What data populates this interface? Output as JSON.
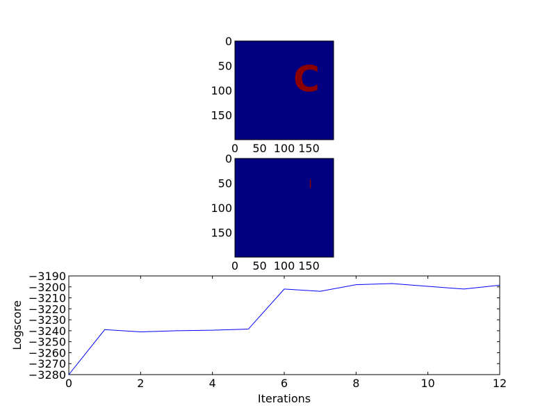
{
  "chart_data": [
    {
      "type": "heatmap",
      "panel": "top",
      "xlim": [
        0,
        200
      ],
      "ylim": [
        200,
        0
      ],
      "x_ticks": [
        "0",
        "50",
        "100",
        "150"
      ],
      "y_ticks": [
        "0",
        "50",
        "100",
        "150"
      ],
      "background_color": "#000080",
      "foreground_color": "#8b0000",
      "glyph": "C",
      "glyph_center": [
        145,
        78
      ],
      "grid": false
    },
    {
      "type": "heatmap",
      "panel": "middle",
      "xlim": [
        0,
        200
      ],
      "ylim": [
        200,
        0
      ],
      "x_ticks": [
        "0",
        "50",
        "100",
        "150"
      ],
      "y_ticks": [
        "0",
        "50",
        "100",
        "150"
      ],
      "background_color": "#000080",
      "foreground_color": "#8b0000",
      "glyph": "l",
      "glyph_center": [
        153,
        52
      ],
      "grid": false
    },
    {
      "type": "line",
      "panel": "bottom",
      "xlabel": "Iterations",
      "ylabel": "Logscore",
      "xlim": [
        0,
        12
      ],
      "ylim": [
        -3280,
        -3190
      ],
      "x_ticks": [
        0,
        2,
        4,
        6,
        8,
        10,
        12
      ],
      "y_ticks": [
        -3190,
        -3200,
        -3210,
        -3220,
        -3230,
        -3240,
        -3250,
        -3260,
        -3270,
        -3280
      ],
      "line_color": "#0000ff",
      "grid": false,
      "series": [
        {
          "x": [
            0,
            1,
            2,
            3,
            4,
            5,
            6,
            7,
            8,
            9,
            10,
            11,
            12
          ],
          "y": [
            -3280,
            -3239,
            -3241,
            -3240,
            -3239.5,
            -3238.5,
            -3202,
            -3204,
            -3198,
            -3197,
            -3199.5,
            -3202,
            -3198.5
          ]
        }
      ]
    }
  ]
}
